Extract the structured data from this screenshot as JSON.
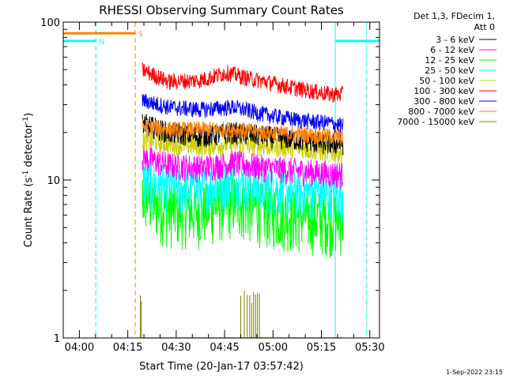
{
  "chart_data": {
    "type": "line",
    "title": "RHESSI Observing Summary Count Rates",
    "xlabel": "Start Time (20-Jan-17 03:57:42)",
    "ylabel_main": "Count Rate (s",
    "ylabel_sup1": "-1",
    "ylabel_mid": " detector",
    "ylabel_sup2": "-1",
    "ylabel_end": ")",
    "scale": "log",
    "ylim": [
      1,
      100
    ],
    "xlim_minutes": [
      -2.7,
      95.3
    ],
    "ytick_labels": [
      {
        "value": 1,
        "label": "1"
      },
      {
        "value": 10,
        "label": "10"
      },
      {
        "value": 100,
        "label": "100"
      }
    ],
    "xticks": [
      {
        "minutes": 2.3,
        "label": "04:00"
      },
      {
        "minutes": 17.3,
        "label": "04:15"
      },
      {
        "minutes": 32.3,
        "label": "04:30"
      },
      {
        "minutes": 47.3,
        "label": "04:45"
      },
      {
        "minutes": 62.3,
        "label": "05:00"
      },
      {
        "minutes": 77.3,
        "label": "05:15"
      },
      {
        "minutes": 92.3,
        "label": "05:30"
      }
    ],
    "legend_header": [
      "Det 1,3, FDecim 1,",
      "Att 0"
    ],
    "legend_position": "right",
    "series": [
      {
        "name": "3 - 6 keV",
        "color": "#000000",
        "points": [
          [
            21.8,
            23
          ],
          [
            30,
            20
          ],
          [
            40,
            19
          ],
          [
            50,
            20
          ],
          [
            60,
            19
          ],
          [
            70,
            18
          ],
          [
            80,
            17
          ],
          [
            84,
            17
          ]
        ]
      },
      {
        "name": "6 - 12 keV",
        "color": "#ff00ff",
        "points": [
          [
            21.8,
            14
          ],
          [
            30,
            12.5
          ],
          [
            40,
            12
          ],
          [
            50,
            13
          ],
          [
            60,
            12
          ],
          [
            70,
            11.5
          ],
          [
            80,
            11
          ],
          [
            84,
            11
          ]
        ]
      },
      {
        "name": "12 - 25 keV",
        "color": "#00ff00",
        "points": [
          [
            21.8,
            8
          ],
          [
            30,
            6.5
          ],
          [
            40,
            6.5
          ],
          [
            50,
            7.5
          ],
          [
            60,
            6.5
          ],
          [
            70,
            6
          ],
          [
            80,
            5.8
          ],
          [
            84,
            5.8
          ]
        ]
      },
      {
        "name": "25 - 50 keV",
        "color": "#00ffff",
        "points": [
          [
            21.8,
            10
          ],
          [
            30,
            9
          ],
          [
            40,
            9
          ],
          [
            50,
            10
          ],
          [
            60,
            9
          ],
          [
            70,
            8.5
          ],
          [
            80,
            8.3
          ],
          [
            84,
            8.3
          ]
        ]
      },
      {
        "name": "50 - 100 keV",
        "color": "#cccc00",
        "points": [
          [
            21.8,
            18
          ],
          [
            30,
            17
          ],
          [
            40,
            16.5
          ],
          [
            50,
            17
          ],
          [
            60,
            16.5
          ],
          [
            70,
            16
          ],
          [
            80,
            15
          ],
          [
            84,
            15
          ]
        ]
      },
      {
        "name": "100 - 300 keV",
        "color": "#ff0000",
        "points": [
          [
            21.8,
            50
          ],
          [
            30,
            42
          ],
          [
            40,
            43
          ],
          [
            48,
            48
          ],
          [
            55,
            44
          ],
          [
            60,
            42
          ],
          [
            70,
            38
          ],
          [
            80,
            35
          ],
          [
            84,
            35
          ]
        ]
      },
      {
        "name": "300 - 800 keV",
        "color": "#0000ff",
        "points": [
          [
            21.8,
            32
          ],
          [
            30,
            29
          ],
          [
            40,
            28
          ],
          [
            50,
            29
          ],
          [
            60,
            26
          ],
          [
            70,
            24
          ],
          [
            80,
            23
          ],
          [
            84,
            22
          ]
        ]
      },
      {
        "name": "800 - 7000 keV",
        "color": "#ff8000",
        "points": [
          [
            21.8,
            22
          ],
          [
            30,
            21
          ],
          [
            40,
            21
          ],
          [
            50,
            21
          ],
          [
            60,
            20
          ],
          [
            70,
            19.5
          ],
          [
            80,
            19
          ],
          [
            84,
            19
          ]
        ]
      },
      {
        "name": "7000 - 15000 keV",
        "color": "#808000",
        "points": [
          [
            21.8,
            1
          ],
          [
            50,
            1
          ],
          [
            58,
            1
          ],
          [
            84,
            1
          ]
        ]
      }
    ],
    "series_noise_percent": [
      16,
      20,
      45,
      35,
      15,
      12,
      12,
      12,
      0
    ],
    "flag_markers": [
      {
        "label": "S",
        "color": "#ff8000",
        "start_minutes": -2.7,
        "end_minutes": 19.6,
        "level": 85
      },
      {
        "label": "N",
        "color": "#00ffff",
        "start_minutes": -2.7,
        "end_minutes": 7.4,
        "level": 76
      },
      {
        "label": "",
        "color": "#00ffff",
        "start_minutes": 81.6,
        "end_minutes": 95.3,
        "level": 76
      }
    ],
    "night_boundary_solid_minutes": [
      -2.7,
      81.6
    ],
    "night_boundary_dashed_minutes": [
      7.4,
      91.3
    ],
    "saa_boundary_dashed_minutes": [
      19.6
    ],
    "spikes_7000_15000_minutes": [
      21.2,
      21.5,
      52.3,
      53.4,
      54.3,
      55.1,
      55.7,
      56.3,
      56.9,
      57.5,
      58.1
    ],
    "spikes_7000_15000_peak": 2,
    "footer_date": "1-Sep-2022 23:15"
  }
}
